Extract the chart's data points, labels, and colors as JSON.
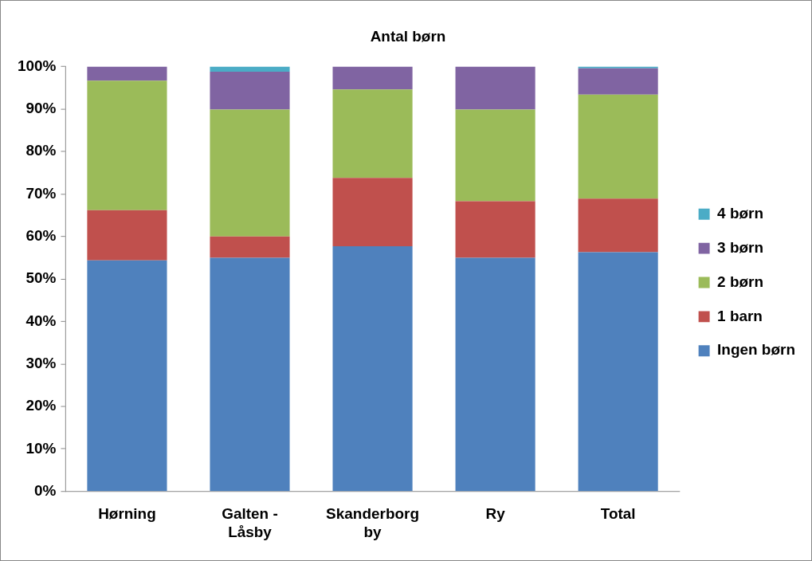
{
  "chart_data": {
    "type": "bar",
    "title": "Antal børn",
    "stacked": true,
    "categories": [
      "Hørning",
      "Galten - Låsby",
      "Skanderborg by",
      "Ry",
      "Total"
    ],
    "series": [
      {
        "name": "Ingen børn",
        "color": "#4f81bd",
        "values": [
          54.4,
          55.0,
          57.7,
          55.0,
          56.3
        ]
      },
      {
        "name": "1 barn",
        "color": "#c0504d",
        "values": [
          11.8,
          5.0,
          16.1,
          13.3,
          12.6
        ]
      },
      {
        "name": "2 børn",
        "color": "#9bbb59",
        "values": [
          30.5,
          29.9,
          20.8,
          21.6,
          24.5
        ]
      },
      {
        "name": "3 børn",
        "color": "#8064a2",
        "values": [
          3.3,
          8.9,
          5.4,
          10.1,
          6.2
        ]
      },
      {
        "name": "4 børn",
        "color": "#4bacc6",
        "values": [
          0,
          1.2,
          0,
          0,
          0.4
        ]
      }
    ],
    "ylim": [
      0,
      100
    ],
    "yticks": [
      {
        "value": 0,
        "label": "0%"
      },
      {
        "value": 10,
        "label": "10%"
      },
      {
        "value": 20,
        "label": "20%"
      },
      {
        "value": 30,
        "label": "30%"
      },
      {
        "value": 40,
        "label": "40%"
      },
      {
        "value": 50,
        "label": "50%"
      },
      {
        "value": 60,
        "label": "60%"
      },
      {
        "value": 70,
        "label": "70%"
      },
      {
        "value": 80,
        "label": "80%"
      },
      {
        "value": 90,
        "label": "90%"
      },
      {
        "value": 100,
        "label": "100%"
      }
    ],
    "grid": false,
    "legend": "right"
  }
}
